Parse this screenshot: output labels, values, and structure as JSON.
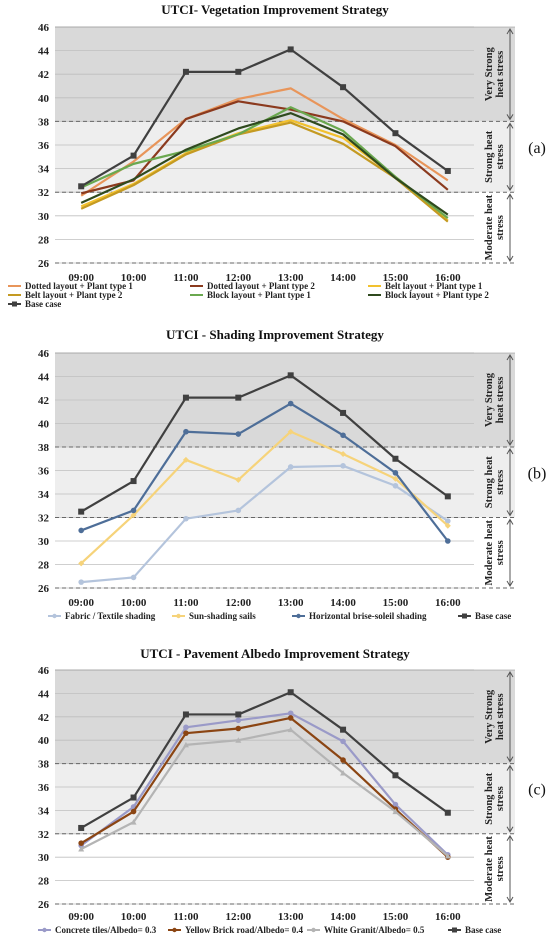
{
  "chart_data": [
    {
      "type": "line",
      "title": "UTCI- Vegetation Improvement Strategy",
      "panel_label": "(a)",
      "categories": [
        "09:00",
        "10:00",
        "11:00",
        "12:00",
        "13:00",
        "14:00",
        "15:00",
        "16:00"
      ],
      "ylim": [
        26,
        46
      ],
      "yticks": [
        26,
        28,
        30,
        32,
        34,
        36,
        38,
        40,
        42,
        44,
        46
      ],
      "bands": [
        {
          "label": "Very Strong heat stress",
          "from": 38,
          "to": 46,
          "color": "#d9d9d9"
        },
        {
          "label": "Strong heat stress",
          "from": 32,
          "to": 38,
          "color": "#eeeeee"
        },
        {
          "label": "Moderate heat stress",
          "from": 26,
          "to": 32,
          "color": "#ffffff"
        }
      ],
      "legend_columns": 3,
      "series": [
        {
          "name": "Dotted layout + Plant type 1",
          "color": "#e8955a",
          "values": [
            31.7,
            34.6,
            38.2,
            39.9,
            40.8,
            38.2,
            36.0,
            33.0
          ]
        },
        {
          "name": "Dotted layout + Plant type 2",
          "color": "#8b3a1e",
          "values": [
            31.9,
            33.0,
            38.2,
            39.7,
            39.0,
            38.0,
            35.9,
            32.2
          ]
        },
        {
          "name": "Belt layout + Plant type 1",
          "color": "#f2c12e",
          "values": [
            30.8,
            32.7,
            35.3,
            37.0,
            38.1,
            36.6,
            33.3,
            29.6
          ]
        },
        {
          "name": "Belt layout + Plant type 2",
          "color": "#c49a22",
          "values": [
            30.6,
            32.6,
            35.2,
            36.9,
            37.9,
            36.1,
            33.2,
            29.5
          ]
        },
        {
          "name": "Block layout + Plant type 1",
          "color": "#6aa84f",
          "values": [
            32.4,
            34.4,
            35.5,
            36.9,
            39.2,
            37.2,
            33.3,
            29.8
          ]
        },
        {
          "name": "Block layout + Plant type 2",
          "color": "#2f4a1e",
          "values": [
            31.1,
            33.1,
            35.6,
            37.4,
            38.7,
            36.9,
            33.2,
            30.1
          ]
        },
        {
          "name": "Base case",
          "color": "#404040",
          "values": [
            32.5,
            35.1,
            42.2,
            42.2,
            44.1,
            40.9,
            37.0,
            33.8
          ]
        }
      ]
    },
    {
      "type": "line",
      "title": "UTCI - Shading Improvement Strategy",
      "panel_label": "(b)",
      "categories": [
        "09:00",
        "10:00",
        "11:00",
        "12:00",
        "13:00",
        "14:00",
        "15:00",
        "16:00"
      ],
      "ylim": [
        26,
        46
      ],
      "yticks": [
        26,
        28,
        30,
        32,
        34,
        36,
        38,
        40,
        42,
        44,
        46
      ],
      "bands": [
        {
          "label": "Very Strong heat stress",
          "from": 38,
          "to": 46,
          "color": "#d9d9d9"
        },
        {
          "label": "Strong heat stress",
          "from": 32,
          "to": 38,
          "color": "#eeeeee"
        },
        {
          "label": "Moderate heat stress",
          "from": 26,
          "to": 32,
          "color": "#ffffff"
        }
      ],
      "legend_columns": 4,
      "series": [
        {
          "name": "Fabric / Textile shading",
          "color": "#b4c4dc",
          "values": [
            26.5,
            26.9,
            31.9,
            32.6,
            36.3,
            36.4,
            34.7,
            31.7
          ]
        },
        {
          "name": "Sun-shading sails",
          "color": "#f6d37a",
          "values": [
            28.1,
            32.2,
            36.9,
            35.2,
            39.3,
            37.4,
            35.3,
            31.3
          ]
        },
        {
          "name": "Horizontal brise-soleil shading",
          "color": "#4e6e98",
          "values": [
            30.9,
            32.6,
            39.3,
            39.1,
            41.7,
            39.0,
            35.8,
            30.0
          ]
        },
        {
          "name": "Base case",
          "color": "#404040",
          "values": [
            32.5,
            35.1,
            42.2,
            42.2,
            44.1,
            40.9,
            37.0,
            33.8
          ]
        }
      ]
    },
    {
      "type": "line",
      "title": "UTCI -  Pavement Albedo Improvement Strategy",
      "panel_label": "(c)",
      "categories": [
        "09:00",
        "10:00",
        "11:00",
        "12:00",
        "13:00",
        "14:00",
        "15:00",
        "16:00"
      ],
      "ylim": [
        26,
        46
      ],
      "yticks": [
        26,
        28,
        30,
        32,
        34,
        36,
        38,
        40,
        42,
        44,
        46
      ],
      "bands": [
        {
          "label": "Very Strong heat stress",
          "from": 38,
          "to": 46,
          "color": "#d9d9d9"
        },
        {
          "label": "Strong heat stress",
          "from": 32,
          "to": 38,
          "color": "#eeeeee"
        },
        {
          "label": "Moderate heat stress",
          "from": 26,
          "to": 32,
          "color": "#ffffff"
        }
      ],
      "legend_columns": 4,
      "series": [
        {
          "name": "Concrete tiles/Albedo= 0.3",
          "color": "#9a9ac8",
          "values": [
            31.0,
            34.3,
            41.1,
            41.7,
            42.3,
            39.9,
            34.5,
            30.2
          ]
        },
        {
          "name": "Yellow Brick road/Albedo= 0.4",
          "color": "#8b4513",
          "values": [
            31.2,
            33.9,
            40.6,
            41.0,
            41.9,
            38.3,
            34.1,
            30.0
          ]
        },
        {
          "name": "White Granit/Albedo= 0.5",
          "color": "#b4b4b4",
          "values": [
            30.7,
            33.0,
            39.6,
            40.0,
            40.9,
            37.2,
            33.9,
            30.1
          ]
        },
        {
          "name": "Base case",
          "color": "#404040",
          "values": [
            32.5,
            35.1,
            42.2,
            42.2,
            44.1,
            40.9,
            37.0,
            33.8
          ]
        }
      ]
    }
  ]
}
